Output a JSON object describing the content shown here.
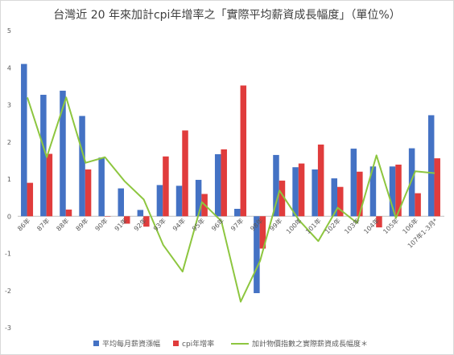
{
  "chart_data": {
    "type": "bar",
    "title": "台灣近 20 年來加計cpi年增率之「實際平均薪資成長幅度」（單位%）",
    "categories": [
      "86年",
      "87年",
      "88年",
      "89年",
      "90年",
      "91年",
      "92年",
      "93年",
      "94年",
      "95年",
      "96年",
      "97年",
      "98年",
      "99年",
      "100年",
      "101年",
      "102年",
      "103年",
      "104年",
      "105年",
      "106年",
      "107年1-3月*"
    ],
    "ylim": [
      -3,
      5
    ],
    "yticks": [
      "-3",
      "-2",
      "-1",
      "0",
      "1",
      "2",
      "3",
      "4",
      "5"
    ],
    "grid": false,
    "legend_position": "bottom",
    "series": [
      {
        "name": "平均每月薪資漲幅",
        "type": "bar",
        "color": "#4472c4",
        "values": [
          4.1,
          3.27,
          3.38,
          2.7,
          1.58,
          0.75,
          0.17,
          0.84,
          0.82,
          0.98,
          1.67,
          0.2,
          -2.07,
          1.65,
          1.32,
          1.26,
          1.02,
          1.82,
          1.34,
          1.34,
          1.83,
          2.72
        ]
      },
      {
        "name": "cpi年增率",
        "type": "bar",
        "color": "#e03c3c",
        "values": [
          0.9,
          1.68,
          0.18,
          1.26,
          -0.01,
          -0.2,
          -0.28,
          1.61,
          2.31,
          0.6,
          1.8,
          3.52,
          -0.87,
          0.96,
          1.42,
          1.93,
          0.79,
          1.2,
          -0.3,
          1.39,
          0.62,
          1.56
        ]
      },
      {
        "name": "加計物價指數之實際薪資成長幅度＊",
        "type": "line",
        "color": "#8dc63f",
        "values": [
          3.2,
          1.59,
          3.2,
          1.44,
          1.59,
          0.95,
          0.45,
          -0.77,
          -1.49,
          0.38,
          -0.13,
          -2.3,
          -1.2,
          0.69,
          -0.1,
          -0.67,
          0.23,
          -0.18,
          1.64,
          -0.05,
          1.21,
          1.16
        ]
      }
    ]
  }
}
